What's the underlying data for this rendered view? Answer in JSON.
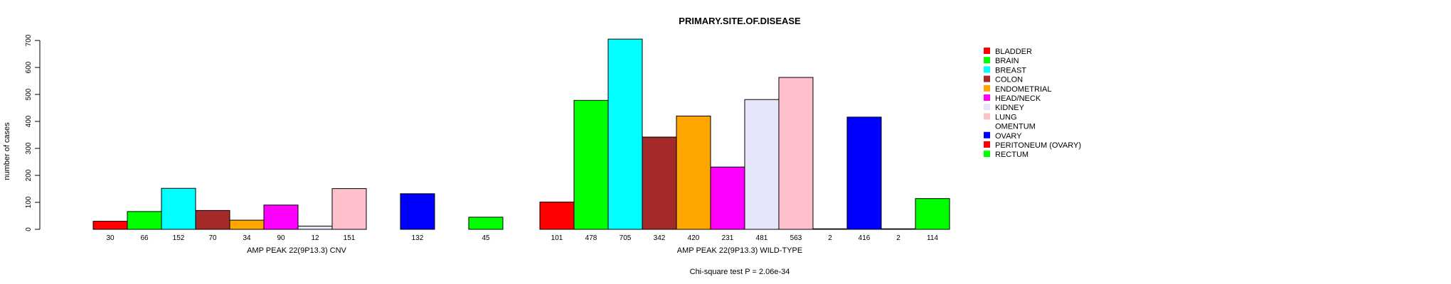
{
  "chart_data": {
    "type": "bar",
    "title": "PRIMARY.SITE.OF.DISEASE",
    "ylabel": "number of cases",
    "ylim": [
      0,
      700
    ],
    "yticks": [
      0,
      100,
      200,
      300,
      400,
      500,
      600,
      700
    ],
    "footnote": "Chi-square test P = 2.06e-34",
    "categories": [
      "BLADDER",
      "BRAIN",
      "BREAST",
      "COLON",
      "ENDOMETRIAL",
      "HEAD/NECK",
      "KIDNEY",
      "LUNG",
      "OMENTUM",
      "OVARY",
      "PERITONEUM (OVARY)",
      "RECTUM"
    ],
    "colors": [
      "#FF0000",
      "#00FF00",
      "#00FFFF",
      "#A52A2A",
      "#FFA500",
      "#FF00FF",
      "#E6E6FA",
      "#FFC0CB",
      "#FFFFFF",
      "#0000FF",
      "#FF0000",
      "#00FF00"
    ],
    "groups": [
      {
        "name": "AMP PEAK 22(9P13.3) CNV",
        "values": [
          30,
          66,
          152,
          70,
          34,
          90,
          12,
          151,
          0,
          132,
          0,
          45
        ]
      },
      {
        "name": "AMP PEAK 22(9P13.3) WILD-TYPE",
        "values": [
          101,
          478,
          705,
          342,
          420,
          231,
          481,
          563,
          2,
          416,
          2,
          114
        ]
      }
    ],
    "legend": [
      "BLADDER",
      "BRAIN",
      "BREAST",
      "COLON",
      "ENDOMETRIAL",
      "HEAD/NECK",
      "KIDNEY",
      "LUNG",
      "OMENTUM",
      "OVARY",
      "PERITONEUM (OVARY)",
      "RECTUM"
    ]
  }
}
